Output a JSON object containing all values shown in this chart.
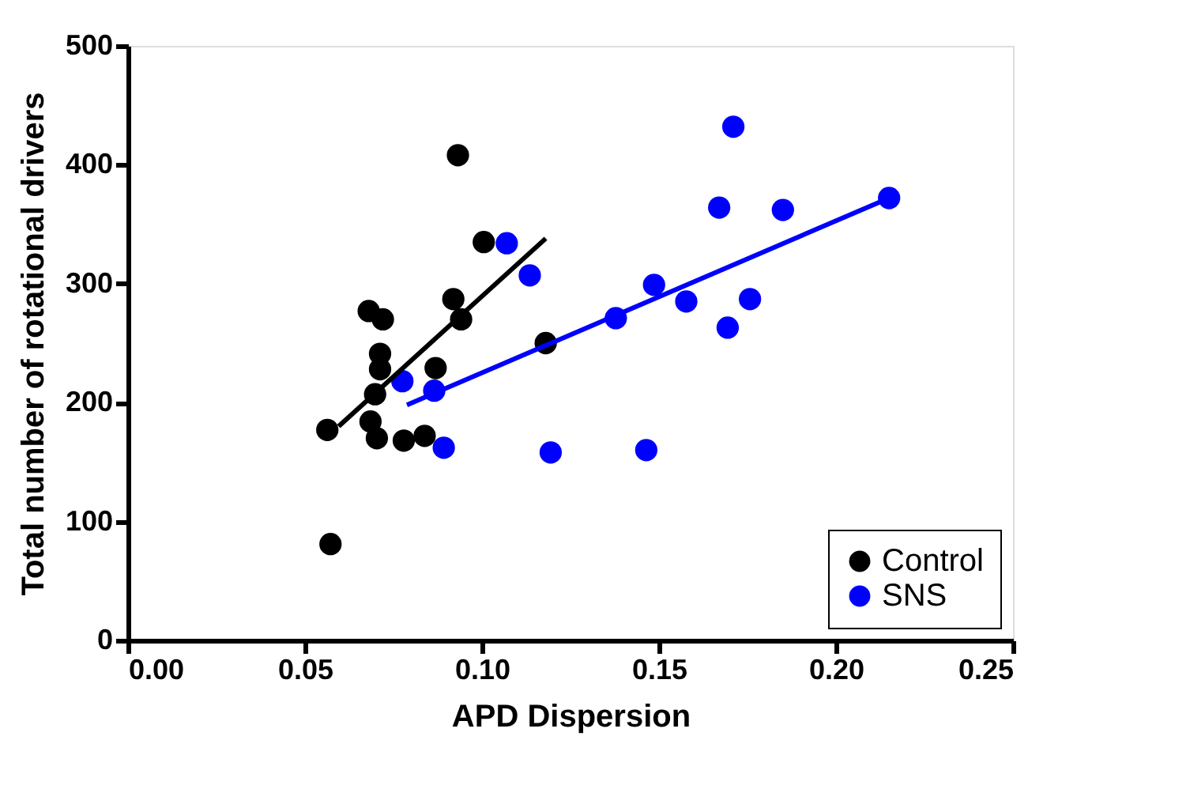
{
  "chart_data": {
    "type": "scatter",
    "xlabel": "APD Dispersion",
    "ylabel": "Total number of rotational drivers",
    "xlim": [
      0,
      0.25
    ],
    "ylim": [
      0,
      500
    ],
    "xticks": [
      {
        "value": 0,
        "label": "0.00"
      },
      0.05,
      {
        "value": 0.1,
        "label": "0.10"
      },
      0.15,
      {
        "value": 0.2,
        "label": "0.20"
      },
      0.25
    ],
    "yticks": [
      0,
      100,
      200,
      300,
      400,
      500
    ],
    "grid": false,
    "legend": "bottom right",
    "marker": "circle",
    "series": [
      {
        "name": "Control",
        "color": "#000000",
        "x": [
          0.0932,
          0.1005,
          0.0919,
          0.0941,
          0.068,
          0.072,
          0.0712,
          0.0712,
          0.0869,
          0.0698,
          0.0563,
          0.0685,
          0.0703,
          0.0779,
          0.0838,
          0.0572,
          0.118
        ],
        "values": [
          408,
          335,
          287,
          270,
          277,
          270,
          241,
          228,
          229,
          207,
          177,
          184,
          170,
          168,
          172,
          81,
          250
        ]
      },
      {
        "name": "SNS",
        "color": "#0000ff",
        "x": [
          0.171,
          0.215,
          0.167,
          0.185,
          0.107,
          0.1135,
          0.1486,
          0.1577,
          0.1757,
          0.1378,
          0.1694,
          0.0775,
          0.0865,
          0.0892,
          0.1194,
          0.1464
        ],
        "values": [
          432,
          372,
          364,
          362,
          334,
          307,
          299,
          285,
          287,
          271,
          263,
          218,
          210,
          162,
          158,
          160
        ]
      },
      {
        "type": "line",
        "color": "#000000",
        "x": [
          0.0595,
          0.118
        ],
        "values": [
          180,
          338
        ],
        "line_style": "solid",
        "marker": "none"
      },
      {
        "type": "line",
        "color": "#0000ff",
        "x": [
          0.0788,
          0.215
        ],
        "values": [
          198,
          372
        ],
        "line_style": "solid",
        "marker": "none"
      }
    ]
  }
}
